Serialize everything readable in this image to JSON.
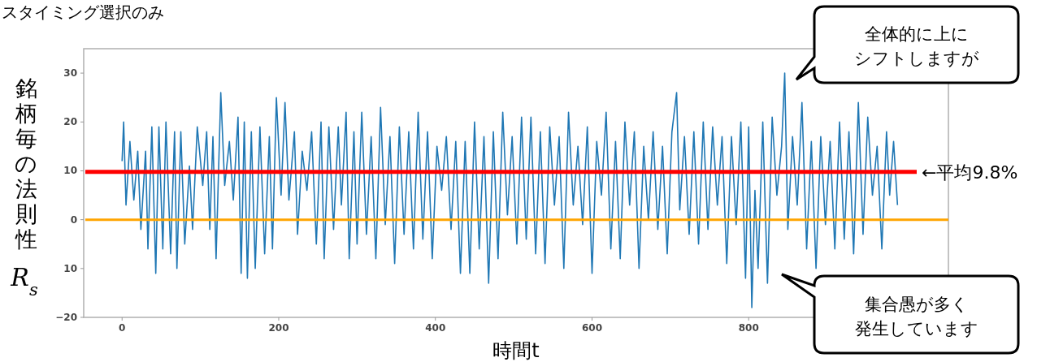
{
  "chart_data": {
    "type": "line",
    "title": "スタイミング選択のみ",
    "xlabel": "時間t",
    "ylabel": "銘柄毎の法則性 R$_{s}$",
    "xlim": [
      -49,
      1055
    ],
    "ylim": [
      -20,
      35
    ],
    "xticks": [
      0,
      200,
      400,
      600,
      800
    ],
    "yticks": [
      {
        "value": -20,
        "label": "−20"
      },
      {
        "value": -10,
        "label": "10"
      },
      0,
      10,
      20,
      30
    ],
    "grid": false,
    "ref_lines": [
      {
        "axis": "y",
        "value": 9.8,
        "label": "←平均9.8%",
        "color": "#ff0000"
      },
      {
        "axis": "y",
        "value": 0,
        "color": "#ffa500"
      }
    ],
    "annotations": [
      "全体的に上にシフトしますが",
      "集合愚が多く発生しています"
    ],
    "x": [
      0,
      2,
      5,
      10,
      15,
      20,
      24,
      30,
      33,
      38,
      43,
      47,
      52,
      56,
      62,
      67,
      70,
      75,
      80,
      86,
      90,
      96,
      103,
      108,
      112,
      116,
      120,
      126,
      131,
      137,
      142,
      148,
      152,
      156,
      160,
      165,
      170,
      176,
      182,
      188,
      192,
      197,
      203,
      208,
      213,
      220,
      224,
      230,
      236,
      242,
      248,
      254,
      258,
      264,
      270,
      276,
      280,
      286,
      290,
      296,
      300,
      306,
      312,
      318,
      324,
      330,
      336,
      342,
      348,
      354,
      360,
      366,
      372,
      378,
      384,
      390,
      396,
      402,
      408,
      414,
      420,
      426,
      432,
      438,
      444,
      450,
      456,
      462,
      468,
      474,
      480,
      486,
      492,
      498,
      504,
      510,
      516,
      522,
      528,
      534,
      540,
      546,
      552,
      558,
      564,
      570,
      576,
      582,
      588,
      594,
      600,
      606,
      612,
      618,
      624,
      630,
      636,
      642,
      648,
      654,
      660,
      666,
      672,
      678,
      684,
      690,
      696,
      702,
      708,
      712,
      718,
      724,
      730,
      736,
      742,
      748,
      754,
      760,
      766,
      772,
      778,
      784,
      790,
      796,
      800,
      804,
      808,
      812,
      818,
      824,
      830,
      836,
      842,
      846,
      850,
      856,
      862,
      868,
      874,
      880,
      886,
      892,
      898,
      904,
      910,
      916,
      922,
      928,
      934,
      940,
      946,
      952,
      958,
      964,
      970,
      976,
      980,
      985,
      990
    ],
    "series": [
      {
        "color": "#1f77b4",
        "values": [
          12,
          20,
          3,
          16,
          4,
          14,
          -2,
          14,
          -6,
          19,
          -11,
          19,
          -6,
          20,
          -7,
          18,
          -10,
          18,
          -5,
          11,
          -2,
          19,
          7,
          18,
          -2,
          17,
          -8,
          26,
          7,
          16,
          4,
          21,
          -11,
          20,
          -12,
          18,
          -10,
          19,
          -7,
          17,
          -6,
          25,
          5,
          24,
          4,
          18,
          -3,
          14,
          6,
          18,
          -5,
          20,
          -8,
          19,
          -2,
          19,
          3,
          22,
          -8,
          18,
          -5,
          22,
          -3,
          17,
          -8,
          23,
          -1,
          17,
          -9,
          19,
          -3,
          18,
          -6,
          22,
          -4,
          18,
          -8,
          15,
          6,
          17,
          -2,
          16,
          -11,
          16,
          -11,
          20,
          -6,
          17,
          -13,
          18,
          -8,
          22,
          1,
          17,
          -5,
          21,
          -4,
          21,
          -7,
          18,
          -9,
          19,
          3,
          17,
          -10,
          22,
          3,
          15,
          -1,
          19,
          -11,
          16,
          5,
          22,
          -6,
          16,
          -8,
          20,
          3,
          18,
          -10,
          15,
          0,
          18,
          -2,
          15,
          -7,
          18,
          26,
          2,
          17,
          -3,
          18,
          -5,
          20,
          -2,
          19,
          3,
          17,
          -9,
          17,
          -1,
          20,
          -12,
          19,
          -18,
          6,
          -10,
          20,
          -13,
          21,
          5,
          15,
          30,
          -2,
          17,
          3,
          24,
          -6,
          16,
          -10,
          17,
          -1,
          16,
          -6,
          20,
          -4,
          18,
          -7,
          24,
          -3,
          21,
          5,
          15,
          -6,
          18,
          5,
          16,
          3
        ]
      }
    ]
  }
}
